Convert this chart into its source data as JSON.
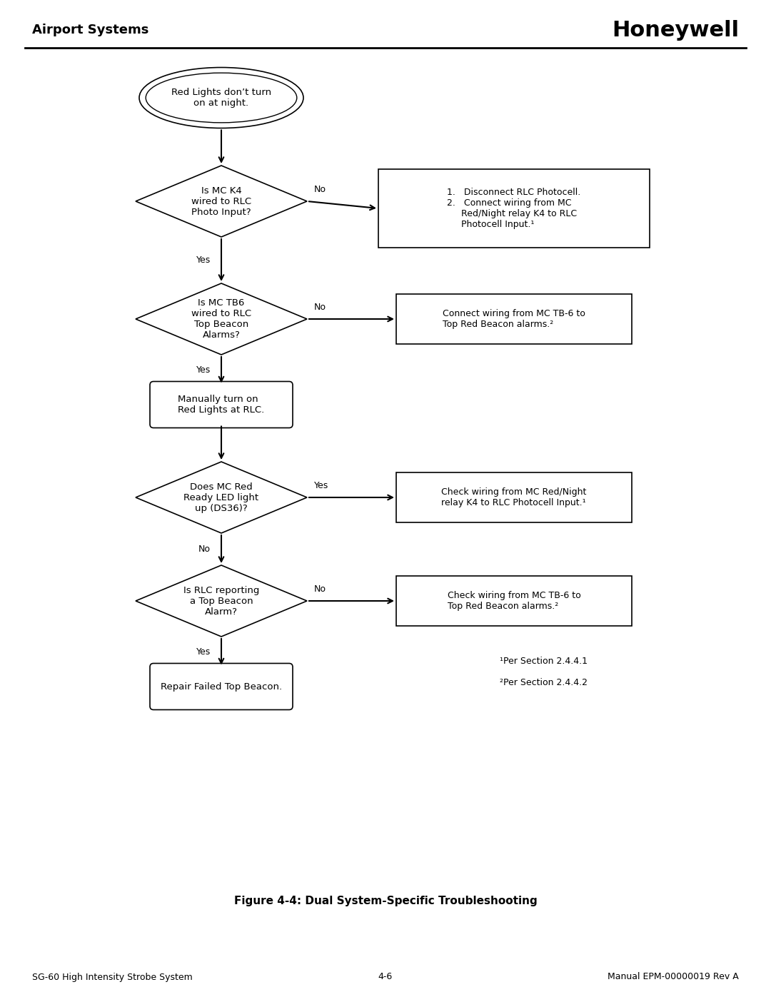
{
  "title_left": "Airport Systems",
  "title_right": "Honeywell",
  "figure_caption": "Figure 4-4: Dual System-Specific Troubleshooting",
  "footer_left": "SG-60 High Intensity Strobe System",
  "footer_center": "4-6",
  "footer_right": "Manual EPM-00000019 Rev A",
  "start_text": "Red Lights don’t turn\non at night.",
  "diamond1_text": "Is MC K4\nwired to RLC\nPhoto Input?",
  "diamond1_no_label": "No",
  "diamond1_yes_label": "Yes",
  "box1_text": "1.   Disconnect RLC Photocell.\n2.   Connect wiring from MC\n     Red/Night relay K4 to RLC\n     Photocell Input.¹",
  "diamond2_text": "Is MC TB6\nwired to RLC\nTop Beacon\nAlarms?",
  "diamond2_no_label": "No",
  "diamond2_yes_label": "Yes",
  "box2_text": "Connect wiring from MC TB-6 to\nTop Red Beacon alarms.²",
  "process1_text": "Manually turn on\nRed Lights at RLC.",
  "diamond3_text": "Does MC Red\nReady LED light\nup (DS36)?",
  "diamond3_yes_label": "Yes",
  "diamond3_no_label": "No",
  "box3_text": "Check wiring from MC Red/Night\nrelay K4 to RLC Photocell Input.¹",
  "diamond4_text": "Is RLC reporting\na Top Beacon\nAlarm?",
  "diamond4_no_label": "No",
  "diamond4_yes_label": "Yes",
  "box4_text": "Check wiring from MC TB-6 to\nTop Red Beacon alarms.²",
  "end_text": "Repair Failed Top Beacon.",
  "footnote1": "¹Per Section 2.4.4.1",
  "footnote2": "²Per Section 2.4.4.2",
  "bg_color": "#ffffff",
  "text_color": "#000000",
  "line_color": "#000000"
}
